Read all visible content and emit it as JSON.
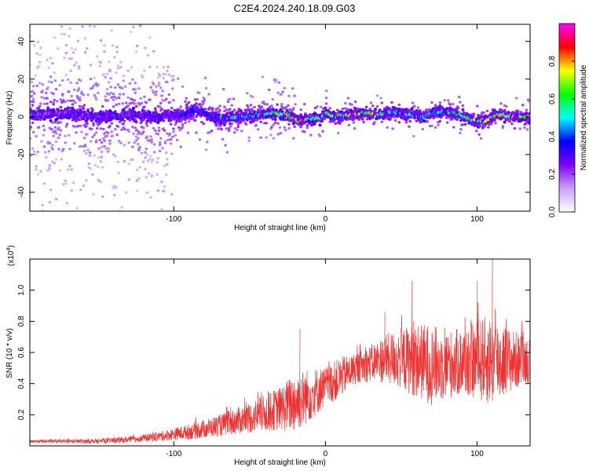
{
  "title": "C2E4.2024.240.18.09.G03",
  "chart_data": [
    {
      "type": "heatmap",
      "xlabel": "Height of straight line (km)",
      "ylabel": "Frequency (Hz)",
      "xlim": [
        -195,
        135
      ],
      "ylim": [
        -50,
        49
      ],
      "xticks": [
        -100,
        0,
        100
      ],
      "xticks_labels": [
        "-100",
        "0",
        "100"
      ],
      "yticks": [
        -40,
        -20,
        0,
        20,
        40
      ],
      "yticks_labels": [
        "-40",
        "-20",
        "0",
        "20",
        "40"
      ],
      "grid": false,
      "ridge_frequency": {
        "x": [
          -195,
          -170,
          -150,
          -130,
          -110,
          -95,
          -85,
          -75,
          -65,
          -55,
          -45,
          -35,
          -25,
          -18,
          -10,
          -3,
          0,
          5,
          15,
          25,
          35,
          45,
          55,
          65,
          75,
          85,
          95,
          105,
          110,
          115,
          125,
          135
        ],
        "y": [
          1,
          2,
          0,
          1,
          0,
          1,
          4,
          0,
          -1,
          0,
          1,
          2,
          1,
          -2,
          -1,
          -1,
          3,
          0,
          1,
          2,
          1,
          3,
          1,
          0,
          3,
          2,
          -1,
          -3,
          0,
          1,
          0,
          0
        ]
      },
      "ridge_amplitude": {
        "x": [
          -195,
          -150,
          -100,
          -80,
          -50,
          -20,
          -10,
          0,
          20,
          60,
          100,
          135
        ],
        "y": [
          0.25,
          0.35,
          0.35,
          0.45,
          0.55,
          0.9,
          0.85,
          0.7,
          0.9,
          0.6,
          0.8,
          0.95
        ]
      },
      "colorbar": {
        "label": "Normalized spectral amplitude",
        "range": [
          0,
          1
        ],
        "ticks": [
          0.0,
          0.2,
          0.4,
          0.6,
          0.8
        ],
        "ticks_labels": [
          "0.0",
          "0.2",
          "0.4",
          "0.6",
          "0.8"
        ],
        "colors": [
          "#ffffff",
          "#c9a3ff",
          "#8000ff",
          "#0000ff",
          "#00ffff",
          "#00ff00",
          "#ffff00",
          "#ff0000",
          "#ff00ff"
        ]
      }
    },
    {
      "type": "line",
      "xlabel": "Height of straight line (km)",
      "ylabel": "SNR (10 * v/v)",
      "y_multiplier": "(x10",
      "y_multiplier_exp": "4",
      "y_multiplier_close": ")",
      "xlim": [
        -195,
        135
      ],
      "ylim": [
        0,
        1.2
      ],
      "xticks": [
        -100,
        0,
        100
      ],
      "xticks_labels": [
        "-100",
        "0",
        "100"
      ],
      "yticks": [
        0.2,
        0.4,
        0.6,
        0.8,
        1.0
      ],
      "yticks_labels": [
        "0.2",
        "0.4",
        "0.6",
        "0.8",
        "1.0"
      ],
      "grid": false,
      "color": "#ee3333",
      "envelope": {
        "x": [
          -195,
          -150,
          -130,
          -110,
          -90,
          -70,
          -50,
          -30,
          -20,
          -10,
          0,
          10,
          20,
          30,
          40,
          50,
          60,
          70,
          80,
          90,
          100,
          110,
          120,
          135
        ],
        "mean": [
          0.03,
          0.03,
          0.04,
          0.06,
          0.09,
          0.13,
          0.18,
          0.24,
          0.28,
          0.33,
          0.38,
          0.44,
          0.5,
          0.53,
          0.56,
          0.56,
          0.55,
          0.52,
          0.52,
          0.54,
          0.55,
          0.55,
          0.55,
          0.55
        ],
        "spread": [
          0.01,
          0.015,
          0.02,
          0.03,
          0.05,
          0.07,
          0.1,
          0.14,
          0.2,
          0.17,
          0.13,
          0.13,
          0.1,
          0.12,
          0.16,
          0.2,
          0.24,
          0.26,
          0.22,
          0.22,
          0.26,
          0.3,
          0.22,
          0.14
        ]
      },
      "peaks": [
        {
          "x": -17,
          "y": 0.75
        },
        {
          "x": 57,
          "y": 1.06
        },
        {
          "x": 110,
          "y": 1.2
        },
        {
          "x": 100,
          "y": 1.06
        },
        {
          "x": 39,
          "y": 0.86
        }
      ]
    }
  ]
}
